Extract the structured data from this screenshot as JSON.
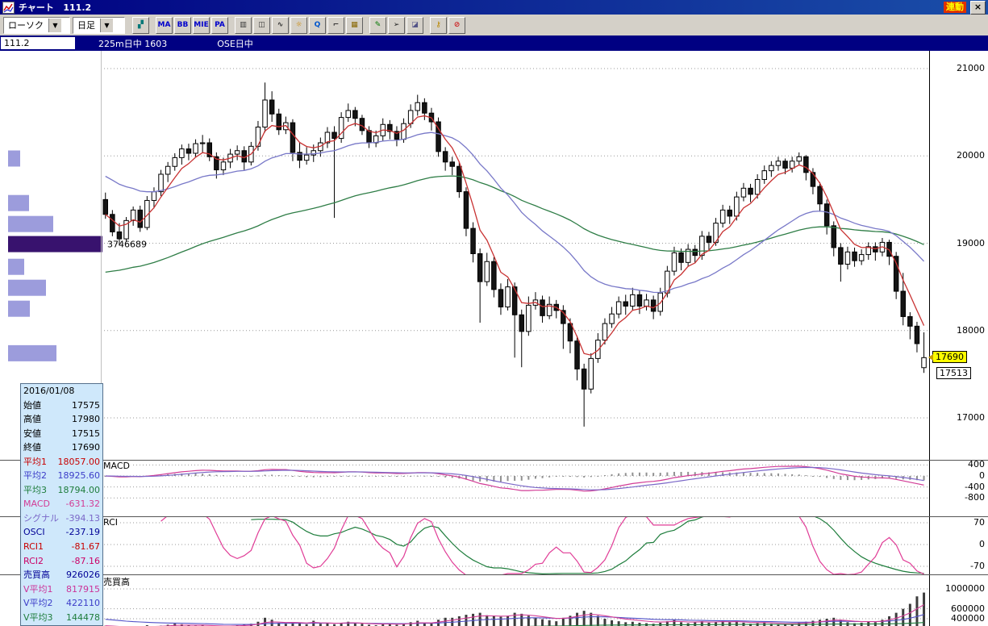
{
  "titlebar": {
    "title": "チャート   111.2",
    "link_label": "連動",
    "close_label": "×"
  },
  "toolbar": {
    "chart_type": "ローソク",
    "timeframe": "日足",
    "dropdown_arrow": "▼",
    "icons": [
      {
        "name": "layout-icon",
        "glyph": "▞",
        "color": "#007878"
      },
      {
        "name": "ma-indicator-icon",
        "glyph": "MA",
        "color": "#0000cc"
      },
      {
        "name": "bb-indicator-icon",
        "glyph": "BB",
        "color": "#0000cc"
      },
      {
        "name": "mie-indicator-icon",
        "glyph": "MIE",
        "color": "#0000cc"
      },
      {
        "name": "pa-indicator-icon",
        "glyph": "PA",
        "color": "#0000cc"
      },
      {
        "name": "bar-chart-icon",
        "glyph": "▥",
        "color": "#333333"
      },
      {
        "name": "candlestick-icon",
        "glyph": "◫",
        "color": "#333333"
      },
      {
        "name": "line-chart-icon",
        "glyph": "∿",
        "color": "#333333"
      },
      {
        "name": "pf-sun-chart-icon",
        "glyph": "☼",
        "color": "#cc8800"
      },
      {
        "name": "zoom-icon",
        "glyph": "Q",
        "color": "#0055cc"
      },
      {
        "name": "kagi-chart-icon",
        "glyph": "⌐",
        "color": "#333333"
      },
      {
        "name": "grid-settings-icon",
        "glyph": "▦",
        "color": "#886600"
      },
      {
        "name": "pencil-icon",
        "glyph": "✎",
        "color": "#007700"
      },
      {
        "name": "pointer-icon",
        "glyph": "➢",
        "color": "#222222"
      },
      {
        "name": "eraser-icon",
        "glyph": "◪",
        "color": "#555588"
      },
      {
        "name": "key-icon",
        "glyph": "⚷",
        "color": "#bb8800"
      },
      {
        "name": "no-draw-icon",
        "glyph": "⊘",
        "color": "#cc2222"
      }
    ]
  },
  "infobar": {
    "symbol": "111.2",
    "instrument": "225m日中 1603",
    "session": "OSE日中"
  },
  "main_chart": {
    "price_ticks": [
      21000,
      20000,
      19000,
      18000,
      17000
    ],
    "price_tag": "17690",
    "last_price": "17513",
    "volume_profile": {
      "peak_label": "3746689",
      "bars": [
        {
          "price": 19970,
          "w": 15,
          "dark": false
        },
        {
          "price": 19460,
          "w": 26,
          "dark": false
        },
        {
          "price": 19220,
          "w": 56,
          "dark": false
        },
        {
          "price": 18990,
          "w": 117,
          "dark": true
        },
        {
          "price": 18730,
          "w": 20,
          "dark": false
        },
        {
          "price": 18490,
          "w": 47,
          "dark": false
        },
        {
          "price": 18250,
          "w": 27,
          "dark": false
        },
        {
          "price": 17740,
          "w": 60,
          "dark": false
        }
      ]
    }
  },
  "panels": {
    "macd": {
      "label": "MACD",
      "ticks": [
        400,
        0,
        -400,
        -800
      ]
    },
    "rci": {
      "label": "RCI",
      "ticks": [
        70,
        0,
        -70
      ]
    },
    "volume": {
      "label": "売買高",
      "ticks": [
        1000000,
        600000,
        400000
      ]
    }
  },
  "info_panel": {
    "rows": [
      {
        "label": "2016/01/08",
        "value": "",
        "color": "#000000"
      },
      {
        "label": "始値",
        "value": "17575",
        "color": "#000000"
      },
      {
        "label": "高値",
        "value": "17980",
        "color": "#000000"
      },
      {
        "label": "安値",
        "value": "17515",
        "color": "#000000"
      },
      {
        "label": "終値",
        "value": "17690",
        "color": "#000000"
      },
      {
        "label": "平均1",
        "value": "18057.00",
        "color": "#c80000"
      },
      {
        "label": "平均2",
        "value": "18925.60",
        "color": "#3c3cc8"
      },
      {
        "label": "平均3",
        "value": "18794.00",
        "color": "#1e7d3c"
      },
      {
        "label": "MACD",
        "value": "-631.32",
        "color": "#d23c96"
      },
      {
        "label": "シグナル",
        "value": "-394.13",
        "color": "#7b68c8"
      },
      {
        "label": "OSCI",
        "value": "-237.19",
        "color": "#000096"
      },
      {
        "label": "RCI1",
        "value": "-81.67",
        "color": "#c80000"
      },
      {
        "label": "RCI2",
        "value": "-87.16",
        "color": "#cc0066"
      },
      {
        "label": "売買高",
        "value": "926026",
        "color": "#000096"
      },
      {
        "label": "V平均1",
        "value": "817915",
        "color": "#cc3399"
      },
      {
        "label": "V平均2",
        "value": "422110",
        "color": "#3c3cc8"
      },
      {
        "label": "V平均3",
        "value": "144478",
        "color": "#1e7d3c"
      }
    ]
  },
  "chart_data": {
    "type": "candlestick",
    "title": "225m日中 1603 日足",
    "ylim": [
      16520,
      21200
    ],
    "colors": {
      "up": "#ffffff",
      "down": "#141414",
      "wick": "#000000",
      "ma1": "#c83232",
      "ma2": "#7878c8",
      "ma3": "#2e7d46",
      "macd": "#d23c96",
      "signal": "#7b68c8",
      "hist": "#909090",
      "rci1": "#e03c96",
      "rci2": "#1e7d3c",
      "vol": "#3c3c3c",
      "vma1": "#d23c96",
      "vma2": "#5050c8",
      "vma3": "#1e7d3c",
      "profile": "#9c9cdc",
      "profile_dark": "#38126e",
      "grid": "#999999"
    },
    "candles": [
      [
        19500,
        19580,
        19280,
        19330
      ],
      [
        19330,
        19380,
        19080,
        19130
      ],
      [
        19130,
        19230,
        18980,
        19050
      ],
      [
        19050,
        19300,
        19020,
        19260
      ],
      [
        19260,
        19420,
        19200,
        19380
      ],
      [
        19380,
        19430,
        19130,
        19180
      ],
      [
        19180,
        19540,
        19150,
        19490
      ],
      [
        19490,
        19640,
        19400,
        19590
      ],
      [
        19590,
        19840,
        19540,
        19790
      ],
      [
        19790,
        19930,
        19700,
        19880
      ],
      [
        19880,
        20030,
        19830,
        19980
      ],
      [
        19980,
        20130,
        19900,
        20080
      ],
      [
        20080,
        20140,
        19950,
        20030
      ],
      [
        20030,
        20190,
        19990,
        20140
      ],
      [
        20140,
        20240,
        20040,
        20150
      ],
      [
        20150,
        20200,
        19940,
        19990
      ],
      [
        19990,
        20040,
        19740,
        19840
      ],
      [
        19840,
        19980,
        19780,
        19930
      ],
      [
        19930,
        20080,
        19860,
        20020
      ],
      [
        20020,
        20120,
        19950,
        20060
      ],
      [
        20060,
        20110,
        19840,
        19930
      ],
      [
        19930,
        20160,
        19890,
        20110
      ],
      [
        20110,
        20400,
        20060,
        20330
      ],
      [
        20330,
        20840,
        20270,
        20640
      ],
      [
        20640,
        20740,
        20390,
        20480
      ],
      [
        20480,
        20540,
        20240,
        20300
      ],
      [
        20300,
        20450,
        20250,
        20380
      ],
      [
        20380,
        20420,
        19940,
        20040
      ],
      [
        20040,
        20150,
        19860,
        19950
      ],
      [
        19950,
        20100,
        19900,
        20010
      ],
      [
        20010,
        20130,
        19930,
        20060
      ],
      [
        20060,
        20210,
        19990,
        20150
      ],
      [
        20150,
        20330,
        20090,
        20270
      ],
      [
        20270,
        20340,
        19290,
        20200
      ],
      [
        20200,
        20500,
        20150,
        20440
      ],
      [
        20440,
        20600,
        20390,
        20520
      ],
      [
        20520,
        20560,
        20340,
        20430
      ],
      [
        20430,
        20470,
        20240,
        20290
      ],
      [
        20290,
        20340,
        20090,
        20150
      ],
      [
        20150,
        20290,
        20100,
        20230
      ],
      [
        20230,
        20430,
        20170,
        20360
      ],
      [
        20360,
        20410,
        20190,
        20280
      ],
      [
        20280,
        20340,
        20110,
        20190
      ],
      [
        20190,
        20430,
        20150,
        20370
      ],
      [
        20370,
        20590,
        20320,
        20520
      ],
      [
        20520,
        20700,
        20460,
        20610
      ],
      [
        20610,
        20660,
        20410,
        20490
      ],
      [
        20490,
        20550,
        20290,
        20390
      ],
      [
        20390,
        20440,
        19990,
        20050
      ],
      [
        20050,
        20100,
        19830,
        19930
      ],
      [
        19930,
        19990,
        19780,
        19880
      ],
      [
        19880,
        19930,
        19520,
        19590
      ],
      [
        19590,
        19640,
        19080,
        19170
      ],
      [
        19170,
        19240,
        18780,
        18880
      ],
      [
        18880,
        18940,
        18090,
        18560
      ],
      [
        18560,
        18890,
        18510,
        18790
      ],
      [
        18790,
        18840,
        18380,
        18470
      ],
      [
        18470,
        18540,
        18180,
        18270
      ],
      [
        18270,
        18590,
        18230,
        18500
      ],
      [
        18500,
        18550,
        17690,
        18180
      ],
      [
        18180,
        18240,
        17580,
        17990
      ],
      [
        17990,
        18390,
        17940,
        18290
      ],
      [
        18290,
        18440,
        18240,
        18350
      ],
      [
        18350,
        18400,
        18090,
        18170
      ],
      [
        18170,
        18390,
        18130,
        18300
      ],
      [
        18300,
        18350,
        18140,
        18230
      ],
      [
        18230,
        18290,
        17790,
        18080
      ],
      [
        18080,
        18140,
        17740,
        17880
      ],
      [
        17880,
        17940,
        17430,
        17560
      ],
      [
        17560,
        17620,
        16900,
        17330
      ],
      [
        17330,
        17740,
        17280,
        17680
      ],
      [
        17680,
        17970,
        17630,
        17890
      ],
      [
        17890,
        18140,
        17840,
        18080
      ],
      [
        18080,
        18270,
        18030,
        18190
      ],
      [
        18190,
        18390,
        18140,
        18330
      ],
      [
        18330,
        18410,
        18180,
        18280
      ],
      [
        18280,
        18490,
        18230,
        18410
      ],
      [
        18410,
        18460,
        18190,
        18280
      ],
      [
        18280,
        18420,
        18230,
        18350
      ],
      [
        18350,
        18400,
        18130,
        18220
      ],
      [
        18220,
        18490,
        18170,
        18430
      ],
      [
        18430,
        18740,
        18380,
        18680
      ],
      [
        18680,
        18960,
        18630,
        18890
      ],
      [
        18890,
        18940,
        18690,
        18780
      ],
      [
        18780,
        18990,
        18730,
        18930
      ],
      [
        18930,
        18980,
        18770,
        18860
      ],
      [
        18860,
        19140,
        18810,
        19080
      ],
      [
        19080,
        19130,
        18920,
        19010
      ],
      [
        19010,
        19290,
        18970,
        19230
      ],
      [
        19230,
        19440,
        19180,
        19380
      ],
      [
        19380,
        19430,
        19220,
        19310
      ],
      [
        19310,
        19590,
        19260,
        19530
      ],
      [
        19530,
        19690,
        19480,
        19630
      ],
      [
        19630,
        19680,
        19470,
        19560
      ],
      [
        19560,
        19790,
        19510,
        19730
      ],
      [
        19730,
        19890,
        19680,
        19830
      ],
      [
        19830,
        19940,
        19760,
        19890
      ],
      [
        19890,
        19990,
        19830,
        19940
      ],
      [
        19940,
        19970,
        19790,
        19860
      ],
      [
        19860,
        19990,
        19810,
        19940
      ],
      [
        19940,
        20040,
        19890,
        19990
      ],
      [
        19990,
        20010,
        19720,
        19810
      ],
      [
        19810,
        19860,
        19560,
        19650
      ],
      [
        19650,
        19700,
        19360,
        19450
      ],
      [
        19450,
        19500,
        19100,
        19200
      ],
      [
        19200,
        19250,
        18850,
        18950
      ],
      [
        18950,
        19000,
        18560,
        18760
      ],
      [
        18760,
        18960,
        18700,
        18900
      ],
      [
        18900,
        18950,
        18730,
        18800
      ],
      [
        18800,
        18930,
        18750,
        18870
      ],
      [
        18870,
        19010,
        18810,
        18960
      ],
      [
        18960,
        19010,
        18800,
        18900
      ],
      [
        18900,
        19060,
        18850,
        19010
      ],
      [
        19010,
        19040,
        18750,
        18850
      ],
      [
        18850,
        18900,
        18360,
        18450
      ],
      [
        18450,
        18660,
        18060,
        18160
      ],
      [
        18160,
        18210,
        17900,
        18050
      ],
      [
        18050,
        18100,
        17750,
        17850
      ],
      [
        17575,
        17980,
        17515,
        17690
      ]
    ],
    "volumes": [
      260000,
      240000,
      220000,
      210000,
      230000,
      250000,
      270000,
      240000,
      260000,
      280000,
      300000,
      290000,
      270000,
      260000,
      280000,
      250000,
      240000,
      230000,
      260000,
      270000,
      280000,
      300000,
      340000,
      420000,
      380000,
      320000,
      300000,
      330000,
      310000,
      290000,
      360000,
      300000,
      310000,
      290000,
      320000,
      340000,
      310000,
      300000,
      280000,
      270000,
      300000,
      290000,
      280000,
      300000,
      330000,
      360000,
      320000,
      310000,
      380000,
      420000,
      420000,
      450000,
      480000,
      500000,
      520000,
      470000,
      450000,
      440000,
      460000,
      520000,
      500000,
      460000,
      420000,
      390000,
      370000,
      350000,
      420000,
      460000,
      520000,
      560000,
      520000,
      460000,
      400000,
      370000,
      350000,
      330000,
      340000,
      320000,
      310000,
      300000,
      320000,
      350000,
      380000,
      330000,
      310000,
      330000,
      350000,
      320000,
      340000,
      360000,
      330000,
      350000,
      320000,
      300000,
      310000,
      330000,
      300000,
      290000,
      280000,
      300000,
      320000,
      340000,
      360000,
      380000,
      400000,
      420000,
      380000,
      330000,
      310000,
      320000,
      350000,
      330000,
      380000,
      450000,
      520000,
      600000,
      700000,
      850000,
      926026
    ]
  }
}
